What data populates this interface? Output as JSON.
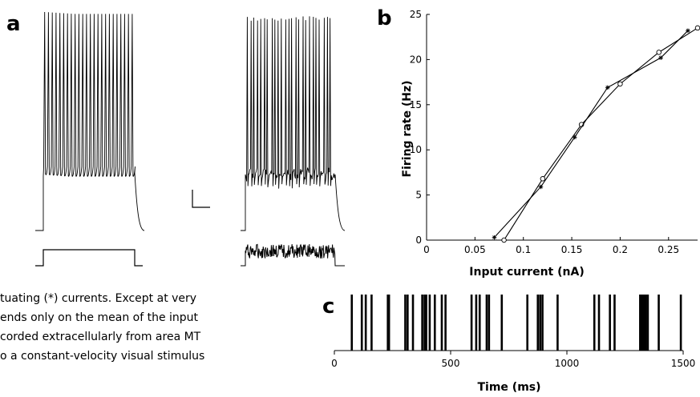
{
  "panels": {
    "a": "a",
    "b": "b",
    "c": "c"
  },
  "caption_lines": [
    "tuating (*) currents. Except at very",
    "ends only on the mean of the input",
    "corded extracellularly from area MT",
    "o a constant-velocity visual stimulus"
  ],
  "chart_data": [
    {
      "type": "line",
      "panel": "b",
      "xlabel": "Input current (nA)",
      "ylabel": "Firing rate (Hz)",
      "xlim": [
        0,
        0.28
      ],
      "ylim": [
        0,
        25
      ],
      "x_ticks": [
        0,
        0.05,
        0.1,
        0.15,
        0.2,
        0.25
      ],
      "x_tick_labels": [
        "0",
        "0.05",
        "0.1",
        "0.15",
        "0.2",
        "0.25"
      ],
      "y_ticks": [
        0,
        5,
        10,
        15,
        20,
        25
      ],
      "y_tick_labels": [
        "0",
        "5",
        "10",
        "15",
        "20",
        "25"
      ],
      "grid": false,
      "series": [
        {
          "marker": "circle",
          "x": [
            0.08,
            0.12,
            0.16,
            0.2,
            0.24,
            0.28
          ],
          "y": [
            0,
            6.8,
            12.8,
            17.3,
            20.8,
            23.5
          ]
        },
        {
          "marker": "star",
          "x": [
            0.07,
            0.118,
            0.153,
            0.187,
            0.242,
            0.27
          ],
          "y": [
            0.3,
            5.9,
            11.4,
            16.9,
            20.2,
            23.2
          ]
        }
      ]
    },
    {
      "type": "raster",
      "panel": "c",
      "xlabel": "Time (ms)",
      "xlim": [
        0,
        1500
      ],
      "x_ticks": [
        0,
        500,
        1000,
        1500
      ],
      "x_tick_labels": [
        "0",
        "500",
        "1000",
        "1500"
      ],
      "spike_times": [
        75,
        118,
        135,
        160,
        230,
        235,
        305,
        315,
        338,
        378,
        388,
        395,
        410,
        432,
        462,
        478,
        590,
        610,
        625,
        655,
        665,
        720,
        830,
        875,
        885,
        895,
        960,
        1118,
        1138,
        1185,
        1205,
        1315,
        1323,
        1330,
        1335,
        1340,
        1348,
        1395,
        1490
      ]
    }
  ],
  "traces": {
    "left_spike_count": 24,
    "right_spike_count": 25,
    "scale_bar": "L-shaped scale bar"
  }
}
